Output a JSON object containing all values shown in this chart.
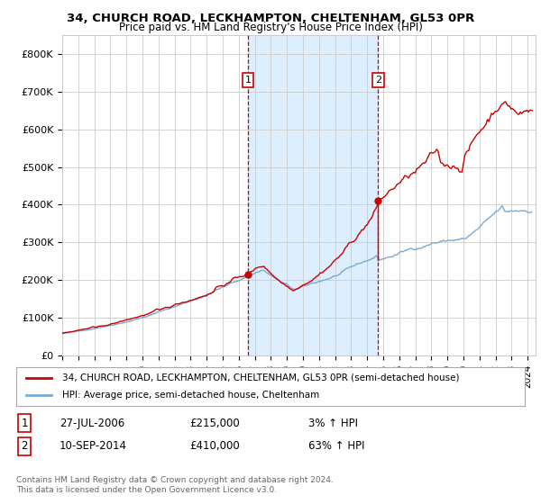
{
  "title1": "34, CHURCH ROAD, LECKHAMPTON, CHELTENHAM, GL53 0PR",
  "title2": "Price paid vs. HM Land Registry's House Price Index (HPI)",
  "legend_line1": "34, CHURCH ROAD, LECKHAMPTON, CHELTENHAM, GL53 0PR (semi-detached house)",
  "legend_line2": "HPI: Average price, semi-detached house, Cheltenham",
  "annotation1": {
    "label": "1",
    "date_year": 2006.57,
    "price": 215000,
    "date_str": "27-JUL-2006",
    "price_str": "£215,000",
    "pct_str": "3% ↑ HPI"
  },
  "annotation2": {
    "label": "2",
    "date_year": 2014.69,
    "price": 410000,
    "date_str": "10-SEP-2014",
    "price_str": "£410,000",
    "pct_str": "63% ↑ HPI"
  },
  "shaded_region": [
    2006.57,
    2014.69
  ],
  "ylim": [
    0,
    850000
  ],
  "xlim": [
    1995.0,
    2024.5
  ],
  "yticks": [
    0,
    100000,
    200000,
    300000,
    400000,
    500000,
    600000,
    700000,
    800000
  ],
  "ytick_labels": [
    "£0",
    "£100K",
    "£200K",
    "£300K",
    "£400K",
    "£500K",
    "£600K",
    "£700K",
    "£800K"
  ],
  "xticks": [
    1995,
    1996,
    1997,
    1998,
    1999,
    2000,
    2001,
    2002,
    2003,
    2004,
    2005,
    2006,
    2007,
    2008,
    2009,
    2010,
    2011,
    2012,
    2013,
    2014,
    2015,
    2016,
    2017,
    2018,
    2019,
    2020,
    2021,
    2022,
    2023,
    2024
  ],
  "line_color_red": "#cc0000",
  "line_color_blue": "#7aaad0",
  "shade_color": "#ddeeff",
  "grid_color": "#cccccc",
  "background_color": "#ffffff",
  "footer": "Contains HM Land Registry data © Crown copyright and database right 2024.\nThis data is licensed under the Open Government Licence v3.0."
}
